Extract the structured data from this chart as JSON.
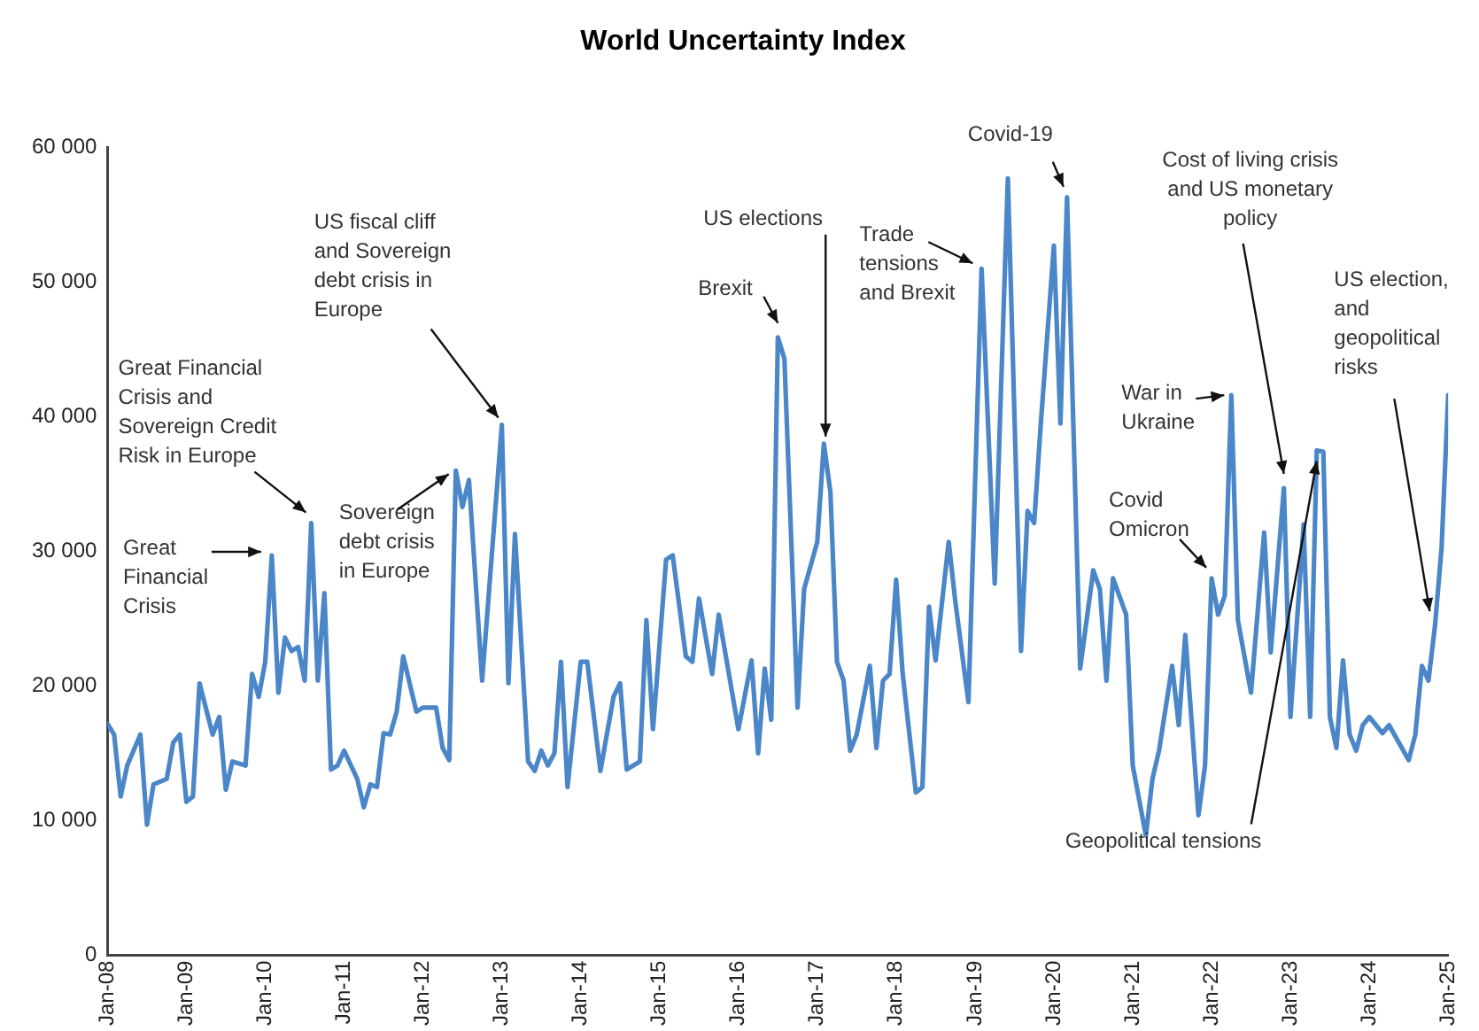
{
  "chart_data": {
    "type": "line",
    "title": "World Uncertainty Index",
    "marker": "none",
    "xlim": [
      "2008-01",
      "2025-01"
    ],
    "xticks": [
      {
        "value": "2008-01",
        "label": "Jan-08"
      },
      {
        "value": "2009-01",
        "label": "Jan-09"
      },
      {
        "value": "2010-01",
        "label": "Jan-10"
      },
      {
        "value": "2011-01",
        "label": "Jan-11"
      },
      {
        "value": "2012-01",
        "label": "Jan-12"
      },
      {
        "value": "2013-01",
        "label": "Jan-13"
      },
      {
        "value": "2014-01",
        "label": "Jan-14"
      },
      {
        "value": "2015-01",
        "label": "Jan-15"
      },
      {
        "value": "2016-01",
        "label": "Jan-16"
      },
      {
        "value": "2017-01",
        "label": "Jan-17"
      },
      {
        "value": "2018-01",
        "label": "Jan-18"
      },
      {
        "value": "2019-01",
        "label": "Jan-19"
      },
      {
        "value": "2020-01",
        "label": "Jan-20"
      },
      {
        "value": "2021-01",
        "label": "Jan-21"
      },
      {
        "value": "2022-01",
        "label": "Jan-22"
      },
      {
        "value": "2023-01",
        "label": "Jan-23"
      },
      {
        "value": "2024-01",
        "label": "Jan-24"
      },
      {
        "value": "2025-01",
        "label": "Jan-25"
      }
    ],
    "ylim": [
      0,
      60000
    ],
    "yticks": [
      0,
      {
        "value": 10000,
        "label": "10 000"
      },
      {
        "value": 20000,
        "label": "20 000"
      },
      {
        "value": 30000,
        "label": "30 000"
      },
      {
        "value": 40000,
        "label": "40 000"
      },
      {
        "value": 50000,
        "label": "50 000"
      },
      {
        "value": 60000,
        "label": "60 000"
      }
    ],
    "series": [
      {
        "color": "#4a86c8",
        "x": [
          "2008-01",
          "2008-02",
          "2008-03",
          "2008-04",
          "2008-06",
          "2008-07",
          "2008-08",
          "2008-10",
          "2008-11",
          "2008-12",
          "2009-01",
          "2009-02",
          "2009-03",
          "2009-05",
          "2009-06",
          "2009-07",
          "2009-08",
          "2009-10",
          "2009-11",
          "2009-12",
          "2010-01",
          "2010-02",
          "2010-03",
          "2010-04",
          "2010-05",
          "2010-06",
          "2010-07",
          "2010-08",
          "2010-09",
          "2010-10",
          "2010-11",
          "2010-12",
          "2011-01",
          "2011-03",
          "2011-04",
          "2011-05",
          "2011-06",
          "2011-07",
          "2011-08",
          "2011-09",
          "2011-10",
          "2011-12",
          "2012-01",
          "2012-03",
          "2012-04",
          "2012-05",
          "2012-06",
          "2012-07",
          "2012-08",
          "2012-10",
          "2013-01",
          "2013-02",
          "2013-03",
          "2013-05",
          "2013-06",
          "2013-07",
          "2013-08",
          "2013-09",
          "2013-10",
          "2013-11",
          "2014-01",
          "2014-02",
          "2014-04",
          "2014-06",
          "2014-07",
          "2014-08",
          "2014-10",
          "2014-11",
          "2014-12",
          "2015-02",
          "2015-03",
          "2015-05",
          "2015-06",
          "2015-07",
          "2015-09",
          "2015-10",
          "2016-01",
          "2016-03",
          "2016-04",
          "2016-05",
          "2016-06",
          "2016-07",
          "2016-08",
          "2016-10",
          "2016-11",
          "2017-01",
          "2017-02",
          "2017-03",
          "2017-04",
          "2017-05",
          "2017-06",
          "2017-07",
          "2017-09",
          "2017-10",
          "2017-11",
          "2017-12",
          "2018-01",
          "2018-02",
          "2018-04",
          "2018-05",
          "2018-06",
          "2018-07",
          "2018-09",
          "2018-10",
          "2018-12",
          "2019-02",
          "2019-04",
          "2019-06",
          "2019-08",
          "2019-09",
          "2019-10",
          "2019-11",
          "2020-01",
          "2020-02",
          "2020-03",
          "2020-05",
          "2020-07",
          "2020-08",
          "2020-09",
          "2020-10",
          "2020-12",
          "2021-01",
          "2021-03",
          "2021-04",
          "2021-05",
          "2021-07",
          "2021-08",
          "2021-09",
          "2021-11",
          "2021-12",
          "2022-01",
          "2022-02",
          "2022-03",
          "2022-04",
          "2022-05",
          "2022-07",
          "2022-09",
          "2022-10",
          "2022-12",
          "2023-01",
          "2023-03",
          "2023-04",
          "2023-05",
          "2023-06",
          "2023-07",
          "2023-08",
          "2023-09",
          "2023-10",
          "2023-11",
          "2023-12",
          "2024-01",
          "2024-03",
          "2024-04",
          "2024-07",
          "2024-08",
          "2024-09",
          "2024-10",
          "2024-11",
          "2024-12",
          "2025-01"
        ],
        "values": [
          17200,
          16400,
          11800,
          14100,
          16400,
          9700,
          12700,
          13100,
          15800,
          16400,
          11400,
          11800,
          20200,
          16400,
          17700,
          12300,
          14400,
          14100,
          20900,
          19200,
          21800,
          29700,
          19500,
          23600,
          22600,
          22900,
          20400,
          32100,
          20400,
          26900,
          13800,
          14100,
          15200,
          13100,
          11000,
          12700,
          12500,
          16500,
          16400,
          18100,
          22200,
          18100,
          18400,
          18400,
          15400,
          14500,
          36000,
          33300,
          35300,
          20400,
          39400,
          20200,
          31300,
          14400,
          13700,
          15200,
          14100,
          15000,
          21800,
          12500,
          21800,
          21800,
          13700,
          19200,
          20200,
          13800,
          14400,
          24900,
          16800,
          29400,
          29700,
          22200,
          21800,
          26500,
          20900,
          25300,
          16800,
          21900,
          15000,
          21300,
          17500,
          45900,
          44300,
          18400,
          27200,
          30700,
          38000,
          34400,
          21800,
          20400,
          15200,
          16400,
          21500,
          15400,
          20400,
          20900,
          27900,
          20900,
          12100,
          12500,
          25900,
          21900,
          30700,
          26300,
          18800,
          51000,
          27600,
          57700,
          22600,
          33000,
          32100,
          39400,
          52700,
          39500,
          56300,
          21300,
          28600,
          27200,
          20400,
          28000,
          25300,
          14100,
          8900,
          13100,
          15200,
          21500,
          17100,
          23800,
          10400,
          14100,
          28000,
          25300,
          26700,
          41600,
          24900,
          19500,
          31400,
          22500,
          34700,
          17700,
          32000,
          17700,
          37500,
          37400,
          17700,
          15400,
          21900,
          16400,
          15200,
          17100,
          17700,
          16500,
          17100,
          14500,
          16400,
          21500,
          20400,
          24500,
          30300,
          41600
        ]
      }
    ],
    "annotations": [
      {
        "text": "Great Financial Crisis",
        "x": "2010-02",
        "y": 29700
      },
      {
        "text": "Great Financial Crisis and Sovereign Credit Risk in Europe",
        "x": "2010-08",
        "y": 32100
      },
      {
        "text": "Sovereign debt crisis in Europe",
        "x": "2012-06",
        "y": 36000
      },
      {
        "text": "US fiscal cliff and Sovereign debt crisis in Europe",
        "x": "2013-01",
        "y": 39400
      },
      {
        "text": "Brexit",
        "x": "2016-07",
        "y": 45900
      },
      {
        "text": "US elections",
        "x": "2017-02",
        "y": 38000
      },
      {
        "text": "Trade tensions and Brexit",
        "x": "2019-02",
        "y": 51000
      },
      {
        "text": "Covid-19",
        "x": "2020-03",
        "y": 56300
      },
      {
        "text": "Cost of living crisis and US monetary policy",
        "x": "2022-12",
        "y": 34700
      },
      {
        "text": "War in Ukraine",
        "x": "2022-04",
        "y": 41600
      },
      {
        "text": "Covid Omicron",
        "x": "2022-01",
        "y": 28000
      },
      {
        "text": "Geopolitical tensions",
        "x": "2023-05",
        "y": 37500
      },
      {
        "text": "US election, and geopolitical risks",
        "x": "2024-11",
        "y": 24500
      }
    ]
  }
}
